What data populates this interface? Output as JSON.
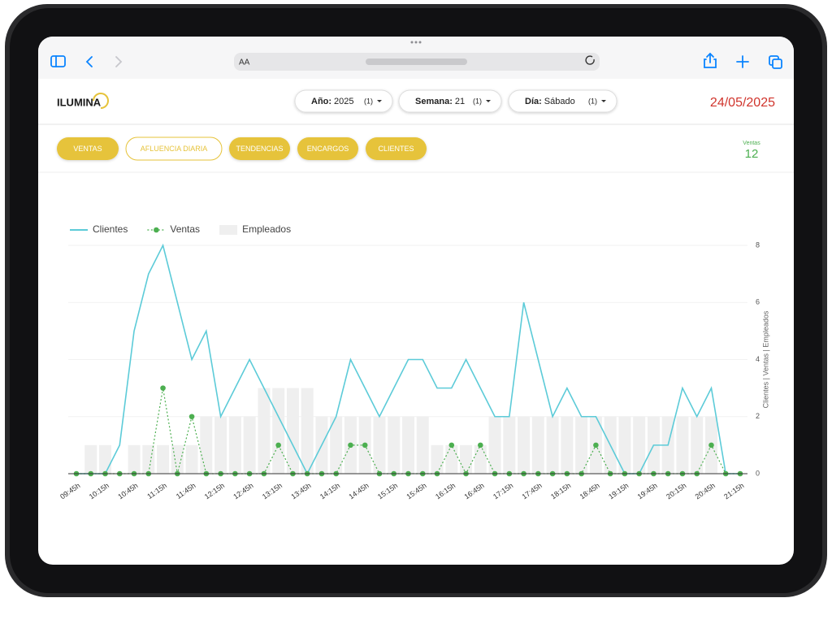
{
  "browser": {
    "text_size": "AA"
  },
  "header": {
    "logo": "ILUMINA",
    "filters": [
      {
        "label": "Año:",
        "value": "2025",
        "count": "(1)"
      },
      {
        "label": "Semana:",
        "value": "21",
        "count": "(1)"
      },
      {
        "label": "Día:",
        "value": "Sábado",
        "count": "(1)"
      }
    ],
    "date": "24/05/2025"
  },
  "tabs": [
    "VENTAS",
    "AFLUENCIA DIARIA",
    "TENDENCIAS",
    "ENCARGOS",
    "CLIENTES"
  ],
  "kpi": {
    "label": "Ventas",
    "value": 12
  },
  "chart_data": {
    "type": "combo",
    "y_label": "Clientes | Ventas | Empleados",
    "y_axis_side": "right",
    "legend": "top-left",
    "grid": true,
    "categories": [
      "09:45h",
      null,
      "10:15h",
      null,
      "10:45h",
      null,
      "11:15h",
      null,
      "11:45h",
      null,
      "12:15h",
      null,
      "12:45h",
      null,
      "13:15h",
      null,
      "13:45h",
      null,
      "14:15h",
      null,
      "14:45h",
      null,
      "15:15h",
      null,
      "15:45h",
      null,
      "16:15h",
      null,
      "16:45h",
      null,
      "17:15h",
      null,
      "17:45h",
      null,
      "18:15h",
      null,
      "18:45h",
      null,
      "19:15h",
      null,
      "19:45h",
      null,
      "20:15h",
      null,
      "20:45h",
      null,
      "21:15h"
    ],
    "ylim": [
      0,
      8
    ],
    "yticks": [
      0,
      2,
      4,
      6,
      8
    ],
    "series": [
      {
        "name": "Clientes",
        "type": "line",
        "color": "#5ccbd8",
        "values": [
          0,
          0,
          0,
          1,
          5,
          7,
          8,
          6,
          4,
          5,
          2,
          3,
          4,
          3,
          2,
          1,
          0,
          1,
          2,
          4,
          3,
          2,
          3,
          4,
          4,
          3,
          3,
          4,
          3,
          2,
          2,
          6,
          4,
          2,
          3,
          2,
          2,
          1,
          0,
          0,
          1,
          1,
          3,
          2,
          3,
          0,
          0
        ]
      },
      {
        "name": "Ventas",
        "type": "dotted",
        "color": "#4caf50",
        "values": [
          0,
          0,
          0,
          0,
          0,
          0,
          3,
          0,
          2,
          0,
          0,
          0,
          0,
          0,
          1,
          0,
          0,
          0,
          0,
          1,
          1,
          0,
          0,
          0,
          0,
          0,
          1,
          0,
          1,
          0,
          0,
          0,
          0,
          0,
          0,
          0,
          1,
          0,
          0,
          0,
          0,
          0,
          0,
          0,
          1,
          0,
          0
        ]
      },
      {
        "name": "Empleados",
        "type": "bar",
        "color": "#efefef",
        "values": [
          0,
          1,
          1,
          0,
          1,
          1,
          1,
          1,
          1,
          2,
          2,
          2,
          2,
          3,
          3,
          3,
          3,
          2,
          2,
          2,
          2,
          2,
          2,
          2,
          2,
          1,
          1,
          1,
          1,
          2,
          2,
          2,
          2,
          2,
          2,
          2,
          2,
          2,
          2,
          2,
          2,
          2,
          2,
          2,
          2,
          0,
          0
        ]
      }
    ]
  }
}
